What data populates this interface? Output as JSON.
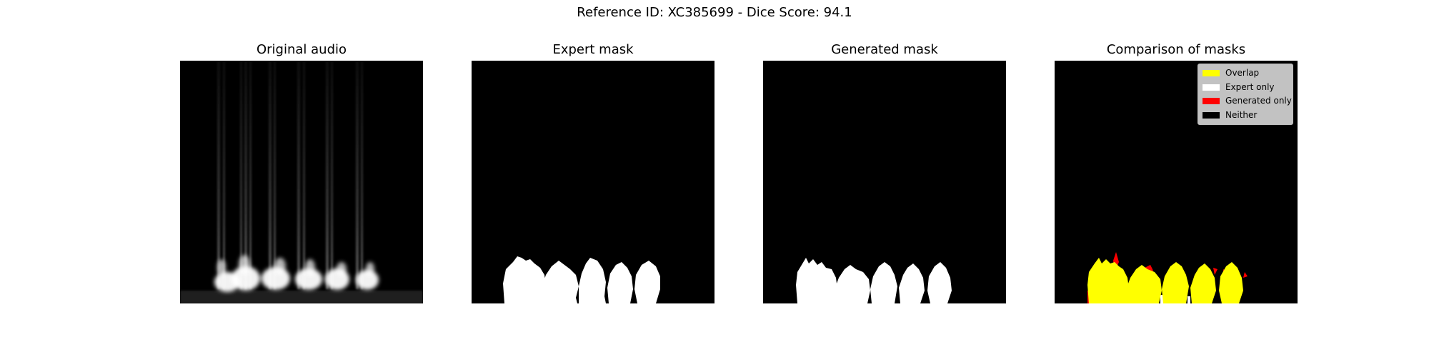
{
  "figure": {
    "suptitle": "Reference ID: XC385699 - Dice Score: 94.1"
  },
  "panels": [
    {
      "title": "Original audio"
    },
    {
      "title": "Expert mask"
    },
    {
      "title": "Generated mask"
    },
    {
      "title": "Comparison of masks"
    }
  ],
  "legend": {
    "placement": "top-right",
    "items": [
      {
        "label": "Overlap",
        "color": "#ffff00"
      },
      {
        "label": "Expert only",
        "color": "#ffffff"
      },
      {
        "label": "Generated only",
        "color": "#ff0000"
      },
      {
        "label": "Neither",
        "color": "#000000"
      }
    ]
  },
  "colors": {
    "background": "#000000",
    "mask": "#ffffff",
    "overlap": "#ffff00",
    "generated_only": "#ff0000"
  }
}
